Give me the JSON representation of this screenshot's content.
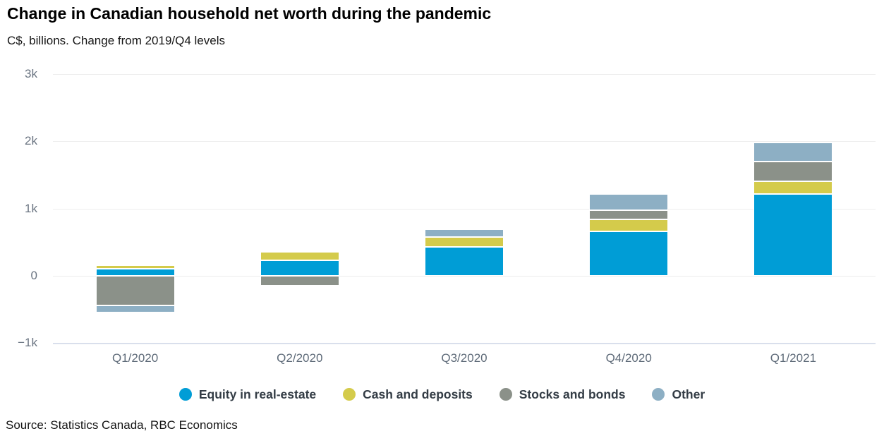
{
  "chart_data": {
    "type": "bar",
    "stacked": true,
    "title": "Change in Canadian household net worth during the pandemic",
    "subtitle": "C$, billions. Change from 2019/Q4 levels",
    "categories": [
      "Q1/2020",
      "Q2/2020",
      "Q3/2020",
      "Q4/2020",
      "Q1/2021"
    ],
    "series": [
      {
        "name": "Equity in real-estate",
        "color": "#009DD6",
        "values": [
          100,
          230,
          430,
          660,
          1220
        ]
      },
      {
        "name": "Cash and deposits",
        "color": "#D4CB4B",
        "values": [
          50,
          120,
          140,
          175,
          180
        ]
      },
      {
        "name": "Stocks and bonds",
        "color": "#8B9189",
        "values": [
          -440,
          -150,
          0,
          140,
          295
        ]
      },
      {
        "name": "Other",
        "color": "#8DAFC4",
        "values": [
          -110,
          0,
          120,
          245,
          290
        ]
      }
    ],
    "ylim": [
      -1000,
      3000
    ],
    "yticks": [
      {
        "value": 3000,
        "label": "3k"
      },
      {
        "value": 2000,
        "label": "2k"
      },
      {
        "value": 1000,
        "label": "1k"
      },
      {
        "value": 0,
        "label": "0"
      },
      {
        "value": -1000,
        "label": "−1k"
      }
    ],
    "grid": true,
    "legend_position": "bottom"
  },
  "footer": {
    "source": "Source: Statistics Canada, RBC Economics"
  },
  "colors": {
    "gridline": "#EDEDED",
    "baseline": "#D9DFEC",
    "axis_text": "#6A7481",
    "x_axis_text": "#5F6B79",
    "legend_text": "#333C45"
  }
}
